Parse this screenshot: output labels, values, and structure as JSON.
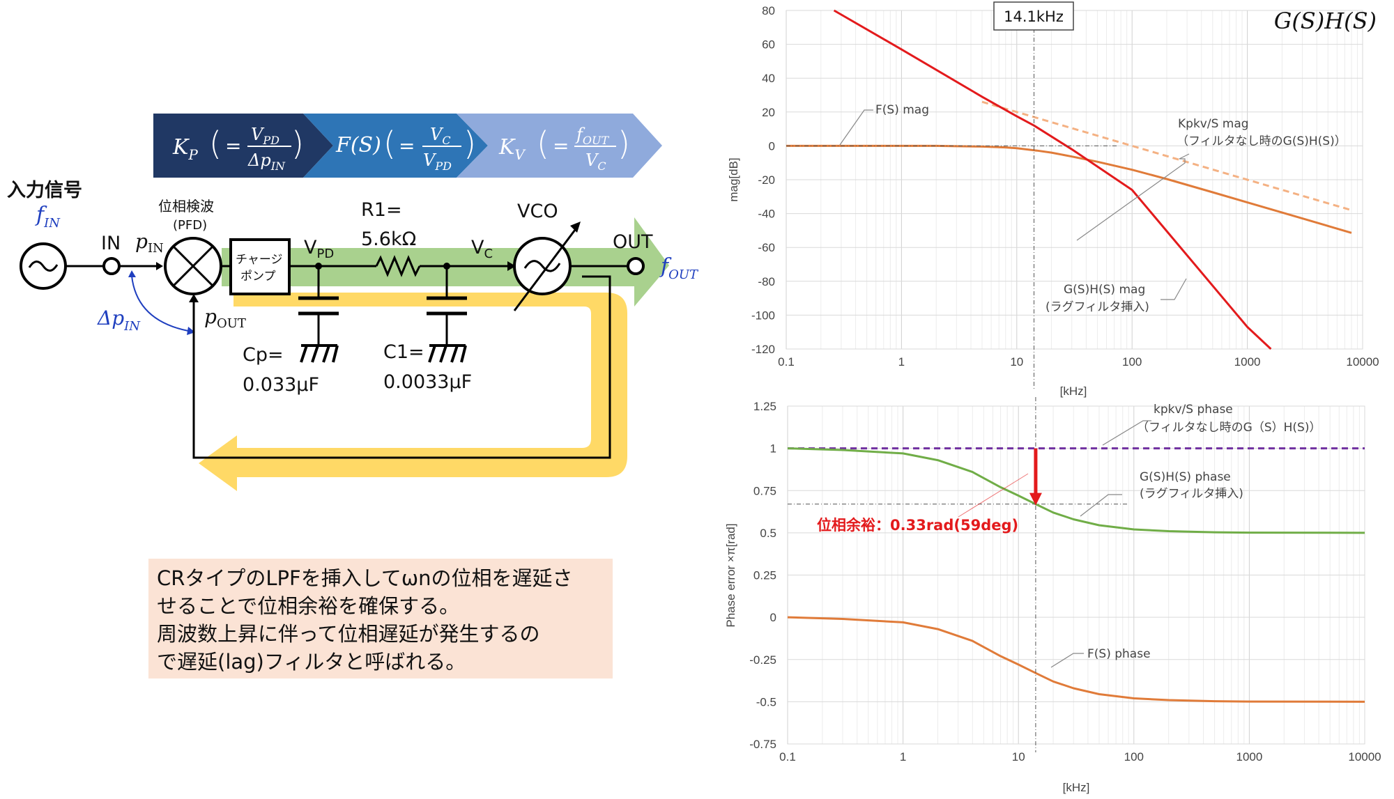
{
  "diagram": {
    "input_signal_label": "入力信号",
    "f_in": "f",
    "f_in_sub": "IN",
    "in_label": "IN",
    "p_in": "p",
    "p_in_sub": "IN",
    "delta_p_in": "Δp",
    "delta_p_in_sub": "IN",
    "p_out": "p",
    "p_out_sub": "OUT",
    "pfd_label": "位相検波",
    "pfd_sub": "(PFD)",
    "charge_pump_line1": "チャージ",
    "charge_pump_line2": "ポンプ",
    "vpd": "V",
    "vpd_sub": "PD",
    "vc": "V",
    "vc_sub": "C",
    "r1_line1": "R1=",
    "r1_line2": "5.6kΩ",
    "cp_line1": "Cp=",
    "cp_line2": "0.033μF",
    "c1_line1": "C1=",
    "c1_line2": "0.0033μF",
    "vco_label": "VCO",
    "out_label": "OUT",
    "f_out": "f",
    "f_out_sub": "OUT",
    "banner": [
      {
        "symbol": "K",
        "sub": "P",
        "num": "V",
        "num_sub": "PD",
        "den": "Δp",
        "den_sub": "IN",
        "color": "#203864"
      },
      {
        "symbol": "F(S)",
        "sub": "",
        "num": "V",
        "num_sub": "C",
        "den": "V",
        "den_sub": "PD",
        "color": "#2e75b6"
      },
      {
        "symbol": "K",
        "sub": "V",
        "num": "f",
        "num_sub": "OUT",
        "den": "V",
        "den_sub": "C",
        "color": "#8faadc"
      }
    ]
  },
  "note": {
    "lines": [
      "CRタイプのLPFを挿入してωnの位相を遅延さ",
      "せることで位相余裕を確保する。",
      "周波数上昇に伴って位相遅延が発生するの",
      "で遅延(lag)フィルタと呼ばれる。"
    ]
  },
  "colors": {
    "red": "#e31a1c",
    "orange": "#e07b39",
    "orange_dashed": "#f4b183",
    "green": "#70ad47",
    "purple": "#7030a0",
    "loop_yellow": "#ffd966",
    "forward_green": "#a9d18e"
  },
  "chart_data": [
    {
      "type": "line",
      "title": "G(S)H(S)",
      "xlabel": "[kHz]",
      "ylabel": "mag[dB]",
      "xscale": "log",
      "xlim": [
        0.1,
        10000
      ],
      "ylim": [
        -120,
        80
      ],
      "xticks": [
        "0.1",
        "1",
        "10",
        "100",
        "1000",
        "10000"
      ],
      "yticks": [
        "80",
        "60",
        "40",
        "20",
        "0",
        "-20",
        "-40",
        "-60",
        "-80",
        "-100",
        "-120"
      ],
      "marker_label": "14.1kHz",
      "marker_x": 14.1,
      "series": [
        {
          "name": "F(S) mag",
          "style": "solid",
          "color": "#e07b39",
          "x": [
            0.1,
            0.5,
            1,
            2,
            3,
            5,
            8,
            10,
            15,
            20,
            30,
            50,
            100,
            200,
            500,
            1000,
            3000,
            8000
          ],
          "y": [
            0,
            0,
            0,
            0,
            -0.2,
            -0.4,
            -0.9,
            -1.4,
            -2.8,
            -4.0,
            -6.3,
            -9.4,
            -14.1,
            -19.6,
            -27.4,
            -33.4,
            -42.9,
            -51.4
          ]
        },
        {
          "name": "Kpkv/S mag\n（フィルタなし時のG(S)H(S)）",
          "style": "dashed",
          "color": "#f4b183",
          "x": [
            5,
            10,
            100,
            1000,
            8000
          ],
          "y": [
            26,
            20,
            0,
            -20,
            -38
          ]
        },
        {
          "name": "G(S)H(S) mag\n(ラグフィルタ挿入)",
          "style": "solid",
          "color": "#e31a1c",
          "x": [
            0.26,
            1,
            5,
            10,
            14.1,
            30,
            100,
            1000,
            1600
          ],
          "y": [
            80,
            57,
            29,
            17.5,
            12,
            -2,
            -26,
            -107,
            -120
          ]
        }
      ],
      "annotations": [
        "F(S) mag",
        "Kpkv/S mag",
        "（フィルタなし時のG(S)H(S)）",
        "G(S)H(S) mag",
        "(ラグフィルタ挿入)"
      ]
    },
    {
      "type": "line",
      "xlabel": "[kHz]",
      "ylabel": "Phase error ×π[rad]",
      "xscale": "log",
      "xlim": [
        0.1,
        10000
      ],
      "ylim": [
        -0.75,
        1.25
      ],
      "xticks": [
        "0.1",
        "1",
        "10",
        "100",
        "1000",
        "10000"
      ],
      "yticks": [
        "1.25",
        "1",
        "0.75",
        "0.5",
        "0.25",
        "0",
        "-0.25",
        "-0.5",
        "-0.75"
      ],
      "marker_x": 14.1,
      "phase_margin_label": "位相余裕：0.33rad(59deg)",
      "series": [
        {
          "name": "kpkv/S phase\n（フィルタなし時のG（S）H(S)）",
          "style": "dashed",
          "color": "#7030a0",
          "x": [
            0.1,
            10000
          ],
          "y": [
            1,
            1
          ]
        },
        {
          "name": "G(S)H(S) phase\n(ラグフィルタ挿入)",
          "style": "solid",
          "color": "#70ad47",
          "x": [
            0.1,
            0.3,
            1,
            2,
            4,
            7,
            10,
            14.1,
            20,
            30,
            50,
            100,
            200,
            500,
            1000,
            10000
          ],
          "y": [
            1.0,
            0.99,
            0.97,
            0.93,
            0.86,
            0.77,
            0.72,
            0.67,
            0.62,
            0.58,
            0.545,
            0.52,
            0.51,
            0.503,
            0.501,
            0.5
          ]
        },
        {
          "name": "F(S) phase",
          "style": "solid",
          "color": "#e07b39",
          "x": [
            0.1,
            0.3,
            1,
            2,
            4,
            7,
            10,
            14.1,
            20,
            30,
            50,
            100,
            200,
            500,
            1000,
            10000
          ],
          "y": [
            0.0,
            -0.01,
            -0.03,
            -0.07,
            -0.14,
            -0.23,
            -0.28,
            -0.33,
            -0.38,
            -0.42,
            -0.455,
            -0.48,
            -0.49,
            -0.497,
            -0.499,
            -0.5
          ]
        }
      ],
      "annotations": [
        "kpkv/S phase",
        "（フィルタなし時のG（S）H(S)）",
        "G(S)H(S) phase",
        "(ラグフィルタ挿入)",
        "F(S) phase"
      ]
    }
  ]
}
